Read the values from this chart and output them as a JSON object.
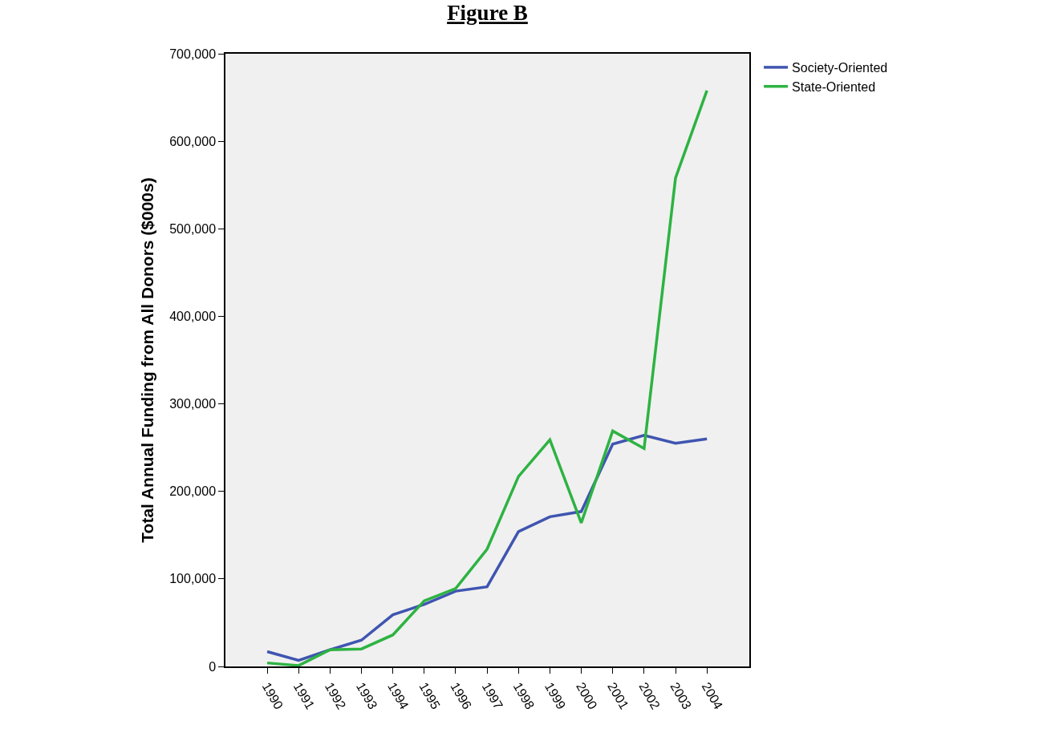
{
  "chart_data": {
    "type": "line",
    "title": "Figure B",
    "ylabel": "Total Annual Funding from All Donors ($000s)",
    "categories": [
      "1990",
      "1991",
      "1992",
      "1993",
      "1994",
      "1995",
      "1996",
      "1997",
      "1998",
      "1999",
      "2000",
      "2001",
      "2002",
      "2003",
      "2004"
    ],
    "series": [
      {
        "name": "Society-Oriented",
        "color": "#3f55b0",
        "values": [
          17000,
          7000,
          19000,
          30000,
          59000,
          71000,
          86000,
          91000,
          154000,
          171000,
          177000,
          254000,
          264000,
          255000,
          260000
        ]
      },
      {
        "name": "State-Oriented",
        "color": "#2db342",
        "values": [
          4000,
          1000,
          19000,
          20000,
          36000,
          75000,
          89000,
          134000,
          217000,
          259000,
          164000,
          269000,
          249000,
          558000,
          658000
        ]
      }
    ],
    "ylim": [
      0,
      700000
    ],
    "yticks": [
      0,
      {
        "value": 100000,
        "label": "100,000"
      },
      {
        "value": 200000,
        "label": "200,000"
      },
      {
        "value": 300000,
        "label": "300,000"
      },
      {
        "value": 400000,
        "label": "400,000"
      },
      {
        "value": 500000,
        "label": "500,000"
      },
      {
        "value": 600000,
        "label": "600,000"
      },
      {
        "value": 700000,
        "label": "700,000"
      }
    ],
    "grid": false,
    "legend": "top right",
    "marker": "none",
    "line_style": "solid"
  }
}
